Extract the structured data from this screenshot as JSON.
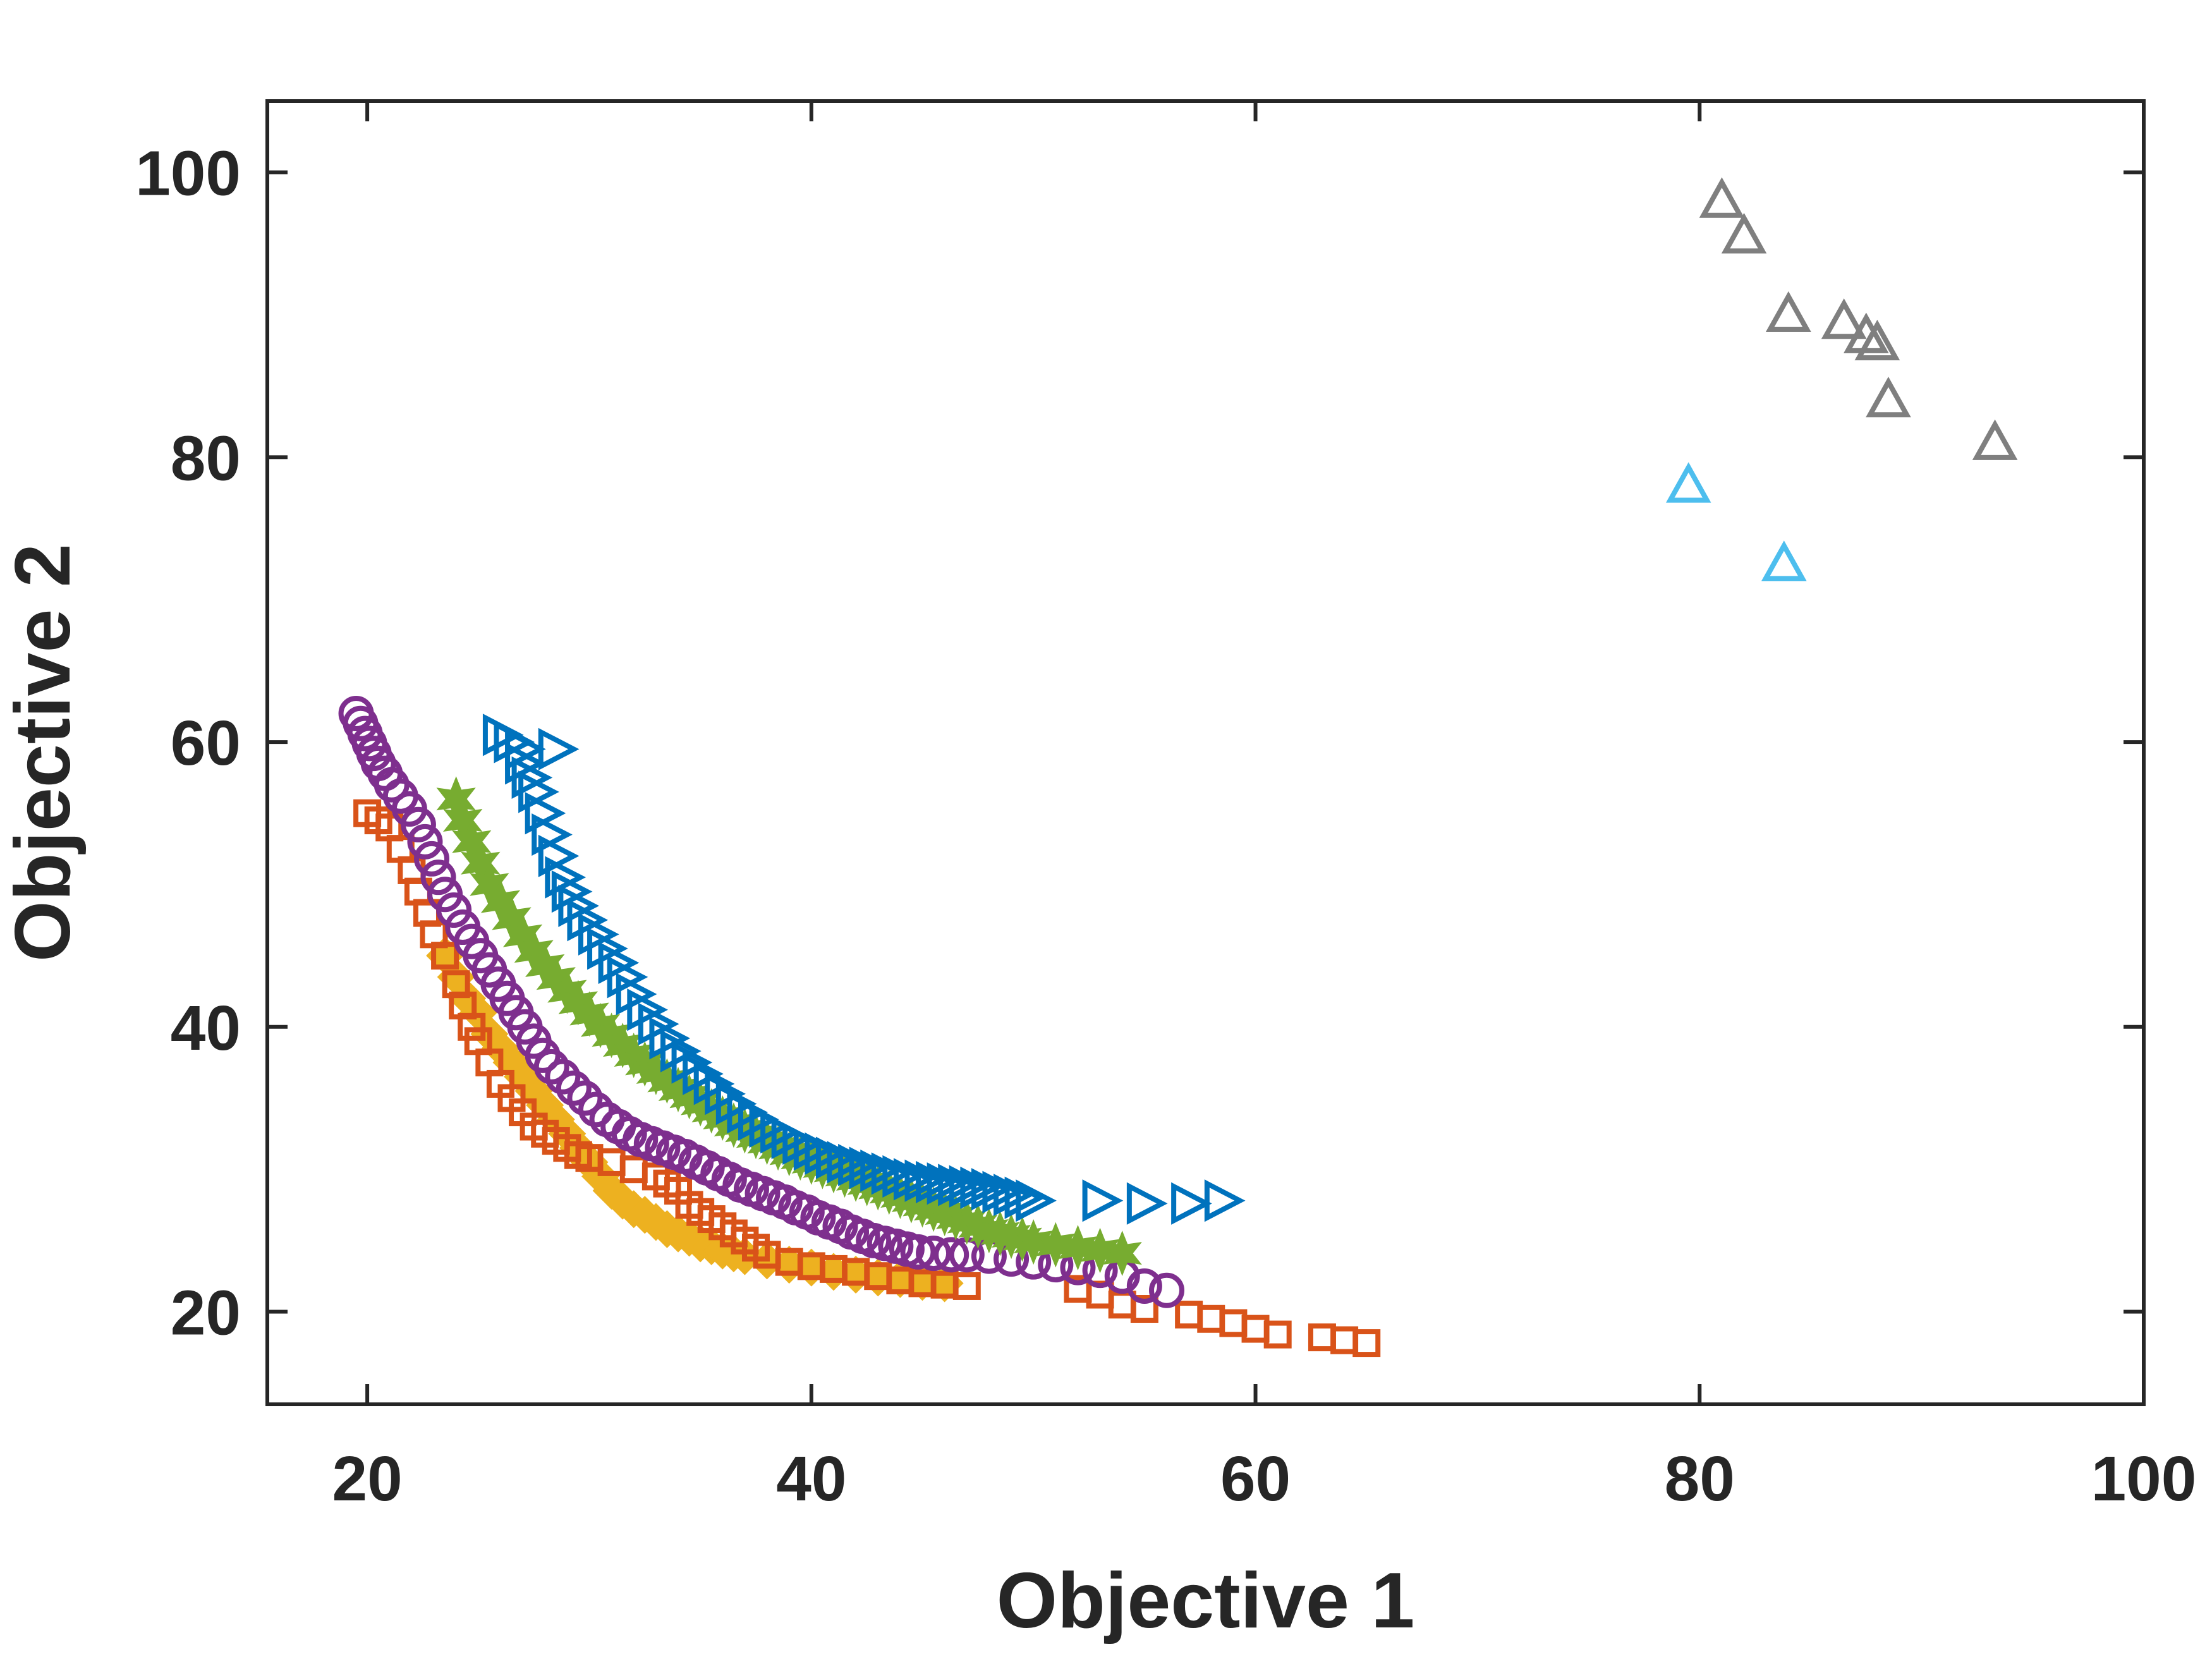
{
  "chart_data": {
    "type": "scatter",
    "xlabel": "Objective 1",
    "ylabel": "Objective 2",
    "xlim": [
      15.5,
      100
    ],
    "ylim": [
      13.5,
      105
    ],
    "xticks": [
      20,
      40,
      60,
      80,
      100
    ],
    "yticks": [
      20,
      40,
      60,
      80,
      100
    ],
    "xtick_labels": [
      "20",
      "40",
      "60",
      "80",
      "100"
    ],
    "ytick_labels": [
      "20",
      "40",
      "60",
      "80",
      "100"
    ],
    "grid": false,
    "legend": "none",
    "colors": {
      "axes": "#262626",
      "background": "#ffffff"
    },
    "series": [
      {
        "name": "series-yellow-diamond",
        "marker": "diamond-filled",
        "color": "#EDB120",
        "points": [
          [
            23.5,
            45
          ],
          [
            24,
            43.5
          ],
          [
            24.5,
            42
          ],
          [
            25,
            41
          ],
          [
            25.5,
            39.5
          ],
          [
            26,
            38.5
          ],
          [
            26.5,
            37.5
          ],
          [
            27,
            36.5
          ],
          [
            27.5,
            35.5
          ],
          [
            28,
            34.5
          ],
          [
            28.5,
            33.5
          ],
          [
            29,
            32.5
          ],
          [
            29.5,
            31.5
          ],
          [
            30,
            30.5
          ],
          [
            30.5,
            29.5
          ],
          [
            31,
            28.5
          ],
          [
            31.5,
            27.8
          ],
          [
            32,
            27.2
          ],
          [
            32.5,
            26.8
          ],
          [
            33,
            26.3
          ],
          [
            33.5,
            25.8
          ],
          [
            34,
            25.5
          ],
          [
            34.5,
            25.2
          ],
          [
            35,
            24.8
          ],
          [
            35.5,
            24.6
          ],
          [
            36,
            24.3
          ],
          [
            36.5,
            24.1
          ],
          [
            37,
            23.9
          ],
          [
            38,
            23.6
          ],
          [
            39,
            23.3
          ],
          [
            40,
            23.1
          ],
          [
            41,
            22.8
          ],
          [
            42,
            22.6
          ],
          [
            43,
            22.4
          ],
          [
            44,
            22.3
          ],
          [
            45,
            22.1
          ],
          [
            46,
            22
          ]
        ]
      },
      {
        "name": "series-orange-square",
        "marker": "square",
        "color": "#D95319",
        "points": [
          [
            20,
            55
          ],
          [
            20.5,
            54.5
          ],
          [
            21,
            54
          ],
          [
            21.5,
            52.5
          ],
          [
            22,
            51
          ],
          [
            22.3,
            49.5
          ],
          [
            22.7,
            48
          ],
          [
            23,
            46.5
          ],
          [
            23.5,
            45
          ],
          [
            24,
            43
          ],
          [
            24.3,
            41.5
          ],
          [
            24.7,
            40
          ],
          [
            25,
            39
          ],
          [
            25.5,
            37.5
          ],
          [
            26,
            36
          ],
          [
            26.5,
            35
          ],
          [
            27,
            34
          ],
          [
            27.5,
            33
          ],
          [
            28,
            32.5
          ],
          [
            28.5,
            32
          ],
          [
            29,
            31.5
          ],
          [
            29.5,
            31
          ],
          [
            30,
            30.8
          ],
          [
            31,
            30.5
          ],
          [
            32,
            30
          ],
          [
            33,
            29.5
          ],
          [
            33.5,
            29
          ],
          [
            34,
            28.5
          ],
          [
            34.5,
            27.5
          ],
          [
            35,
            27
          ],
          [
            35.5,
            26.5
          ],
          [
            36,
            26
          ],
          [
            36.5,
            25.5
          ],
          [
            37,
            25
          ],
          [
            37.5,
            24.5
          ],
          [
            38,
            24
          ],
          [
            39,
            23.5
          ],
          [
            40,
            23.2
          ],
          [
            41,
            23
          ],
          [
            42,
            22.8
          ],
          [
            43,
            22.5
          ],
          [
            44,
            22.2
          ],
          [
            45,
            22
          ],
          [
            46,
            21.9
          ],
          [
            47,
            21.8
          ],
          [
            52,
            21.6
          ],
          [
            53,
            21.2
          ],
          [
            54,
            20.5
          ],
          [
            55,
            20.2
          ],
          [
            57,
            19.8
          ],
          [
            58,
            19.5
          ],
          [
            59,
            19.2
          ],
          [
            60,
            18.8
          ],
          [
            61,
            18.4
          ],
          [
            63,
            18.2
          ],
          [
            64,
            18
          ],
          [
            65,
            17.8
          ]
        ]
      },
      {
        "name": "series-purple-circle",
        "marker": "circle",
        "color": "#7E2F8E",
        "points": [
          [
            19.5,
            62
          ],
          [
            19.7,
            61.3
          ],
          [
            19.9,
            60.6
          ],
          [
            20.1,
            59.9
          ],
          [
            20.3,
            59.2
          ],
          [
            20.5,
            58.5
          ],
          [
            20.8,
            57.8
          ],
          [
            21.1,
            57
          ],
          [
            21.5,
            56.2
          ],
          [
            21.9,
            55.3
          ],
          [
            22.3,
            54.2
          ],
          [
            22.6,
            53
          ],
          [
            22.9,
            51.8
          ],
          [
            23.2,
            50.5
          ],
          [
            23.5,
            49.3
          ],
          [
            23.9,
            48.2
          ],
          [
            24.3,
            47
          ],
          [
            24.7,
            46
          ],
          [
            25.1,
            45
          ],
          [
            25.5,
            44
          ],
          [
            25.9,
            43
          ],
          [
            26.3,
            42
          ],
          [
            26.7,
            41
          ],
          [
            27.1,
            40
          ],
          [
            27.5,
            39
          ],
          [
            27.9,
            38
          ],
          [
            28.3,
            37.2
          ],
          [
            28.8,
            36.5
          ],
          [
            29.3,
            35.7
          ],
          [
            29.8,
            35
          ],
          [
            30.3,
            34.2
          ],
          [
            30.8,
            33.5
          ],
          [
            31.3,
            33
          ],
          [
            31.8,
            32.5
          ],
          [
            32.3,
            32.1
          ],
          [
            32.8,
            31.8
          ],
          [
            33.3,
            31.5
          ],
          [
            33.8,
            31.2
          ],
          [
            34.3,
            30.9
          ],
          [
            34.8,
            30.5
          ],
          [
            35.3,
            30.1
          ],
          [
            35.8,
            29.7
          ],
          [
            36.3,
            29.3
          ],
          [
            36.8,
            28.9
          ],
          [
            37.3,
            28.6
          ],
          [
            37.8,
            28.3
          ],
          [
            38.3,
            28
          ],
          [
            38.8,
            27.7
          ],
          [
            39.3,
            27.3
          ],
          [
            39.8,
            27
          ],
          [
            40.3,
            26.6
          ],
          [
            40.8,
            26.3
          ],
          [
            41.3,
            26
          ],
          [
            41.8,
            25.6
          ],
          [
            42.3,
            25.3
          ],
          [
            42.8,
            25
          ],
          [
            43.3,
            24.8
          ],
          [
            43.8,
            24.6
          ],
          [
            44.3,
            24.4
          ],
          [
            44.8,
            24.2
          ],
          [
            45.5,
            24.1
          ],
          [
            46.3,
            24
          ],
          [
            47,
            24
          ],
          [
            48,
            23.9
          ],
          [
            49,
            23.7
          ],
          [
            50,
            23.5
          ],
          [
            51,
            23.3
          ],
          [
            52,
            23.1
          ],
          [
            53,
            22.9
          ],
          [
            54,
            22.5
          ],
          [
            55,
            21.8
          ],
          [
            56,
            21.5
          ]
        ]
      },
      {
        "name": "series-green-star",
        "marker": "hexagram-filled",
        "color": "#77AC30",
        "points": [
          [
            24,
            56
          ],
          [
            24.3,
            54.5
          ],
          [
            24.7,
            53
          ],
          [
            25.1,
            51.5
          ],
          [
            25.5,
            50
          ],
          [
            26,
            48.8
          ],
          [
            26.5,
            47.6
          ],
          [
            27,
            46.4
          ],
          [
            27.5,
            45.3
          ],
          [
            28,
            44.3
          ],
          [
            28.5,
            43.4
          ],
          [
            29,
            42.5
          ],
          [
            29.5,
            41.7
          ],
          [
            30,
            40.9
          ],
          [
            30.5,
            40.1
          ],
          [
            31,
            39.4
          ],
          [
            31.5,
            38.7
          ],
          [
            32,
            38
          ],
          [
            32.5,
            37.4
          ],
          [
            33,
            36.8
          ],
          [
            33.5,
            36.2
          ],
          [
            34,
            35.6
          ],
          [
            34.5,
            35.1
          ],
          [
            35,
            34.6
          ],
          [
            35.5,
            34.1
          ],
          [
            36,
            33.6
          ],
          [
            36.5,
            33.1
          ],
          [
            37,
            32.7
          ],
          [
            37.5,
            32.3
          ],
          [
            38,
            31.9
          ],
          [
            38.5,
            31.5
          ],
          [
            39,
            31.1
          ],
          [
            39.5,
            30.8
          ],
          [
            40,
            30.5
          ],
          [
            40.5,
            30.2
          ],
          [
            41,
            29.9
          ],
          [
            41.5,
            29.6
          ],
          [
            42,
            29.3
          ],
          [
            42.5,
            29
          ],
          [
            43,
            28.7
          ],
          [
            43.5,
            28.4
          ],
          [
            44,
            28.1
          ],
          [
            44.5,
            27.8
          ],
          [
            45,
            27.5
          ],
          [
            45.5,
            27.2
          ],
          [
            46,
            26.9
          ],
          [
            46.5,
            26.6
          ],
          [
            47,
            26.3
          ],
          [
            47.5,
            26
          ],
          [
            48,
            25.7
          ],
          [
            48.5,
            25.5
          ],
          [
            49,
            25.3
          ],
          [
            49.5,
            25.1
          ],
          [
            50,
            24.9
          ],
          [
            51,
            24.7
          ],
          [
            52,
            24.5
          ],
          [
            53,
            24.3
          ],
          [
            54,
            24.1
          ]
        ]
      },
      {
        "name": "series-blue-triangle-right",
        "marker": "triangle-right",
        "color": "#0072BD",
        "points": [
          [
            26,
            60.5
          ],
          [
            26.5,
            60
          ],
          [
            27,
            59.5
          ],
          [
            28.5,
            59.5
          ],
          [
            27,
            58.5
          ],
          [
            27.3,
            57.5
          ],
          [
            27.6,
            56.5
          ],
          [
            27.9,
            55
          ],
          [
            28.2,
            53.5
          ],
          [
            28.5,
            52
          ],
          [
            28.8,
            50.5
          ],
          [
            29.1,
            49.5
          ],
          [
            29.4,
            48.5
          ],
          [
            29.8,
            47.5
          ],
          [
            30.3,
            46.5
          ],
          [
            30.7,
            45.5
          ],
          [
            31.2,
            44.5
          ],
          [
            31.6,
            43.5
          ],
          [
            32,
            42.3
          ],
          [
            32.5,
            41.2
          ],
          [
            33,
            40.2
          ],
          [
            33.5,
            39.2
          ],
          [
            34,
            38.3
          ],
          [
            34.5,
            37.5
          ],
          [
            35,
            36.7
          ],
          [
            35.5,
            36
          ],
          [
            36,
            35.3
          ],
          [
            36.5,
            34.6
          ],
          [
            37,
            34
          ],
          [
            37.5,
            33.5
          ],
          [
            38,
            33
          ],
          [
            38.5,
            32.6
          ],
          [
            39,
            32.2
          ],
          [
            39.5,
            31.8
          ],
          [
            40,
            31.4
          ],
          [
            40.5,
            31.1
          ],
          [
            41,
            30.8
          ],
          [
            41.5,
            30.5
          ],
          [
            42,
            30.3
          ],
          [
            42.5,
            30.1
          ],
          [
            43,
            29.9
          ],
          [
            43.5,
            29.7
          ],
          [
            44,
            29.5
          ],
          [
            44.5,
            29.3
          ],
          [
            45,
            29.2
          ],
          [
            45.5,
            29.1
          ],
          [
            46,
            29
          ],
          [
            46.5,
            28.9
          ],
          [
            47,
            28.8
          ],
          [
            47.5,
            28.7
          ],
          [
            48,
            28.6
          ],
          [
            48.5,
            28.4
          ],
          [
            49,
            28.2
          ],
          [
            49.5,
            28
          ],
          [
            50,
            27.8
          ],
          [
            53,
            27.8
          ],
          [
            55,
            27.6
          ],
          [
            57,
            27.6
          ],
          [
            58.5,
            27.8
          ]
        ]
      },
      {
        "name": "series-gray-triangle-up",
        "marker": "triangle-up",
        "color": "#7F7F7F",
        "points": [
          [
            81,
            98
          ],
          [
            82,
            95.5
          ],
          [
            84,
            90
          ],
          [
            86.5,
            89.5
          ],
          [
            87.5,
            88.5
          ],
          [
            88,
            88
          ],
          [
            88.5,
            84
          ],
          [
            93.3,
            81
          ]
        ]
      },
      {
        "name": "series-cyan-triangle-up",
        "marker": "triangle-up",
        "color": "#4DBEEE",
        "points": [
          [
            79.5,
            78
          ],
          [
            83.8,
            72.5
          ]
        ]
      }
    ]
  }
}
